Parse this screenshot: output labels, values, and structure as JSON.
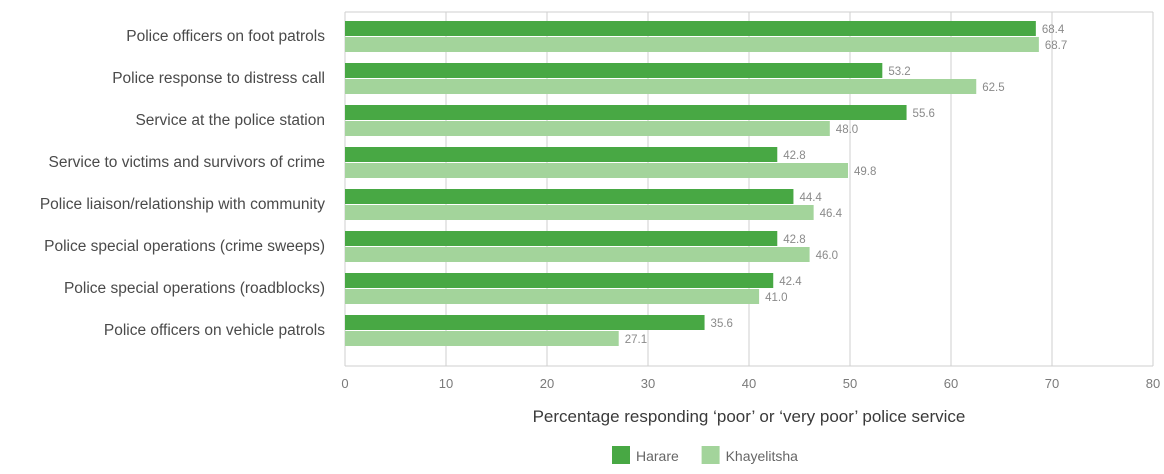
{
  "chart_data": {
    "type": "bar",
    "orientation": "horizontal",
    "title": "",
    "xlabel": "Percentage responding ‘poor’ or ‘very poor’ police service",
    "ylabel": "",
    "xlim": [
      0,
      80
    ],
    "xticks": [
      "0",
      "10",
      "20",
      "30",
      "40",
      "50",
      "60",
      "70",
      "80"
    ],
    "grid": "vertical",
    "legend_position": "bottom-center",
    "categories": [
      "Police officers on foot patrols",
      "Police response to distress call",
      "Service at the police station",
      "Service to victims and survivors of crime",
      "Police liaison/relationship with community",
      "Police special operations (crime sweeps)",
      "Police special operations (roadblocks)",
      "Police officers on vehicle patrols"
    ],
    "series": [
      {
        "name": "Harare",
        "color": "#48a844",
        "values": [
          68.4,
          53.2,
          55.6,
          42.8,
          44.4,
          42.8,
          42.4,
          35.6
        ],
        "labels": [
          "68.4",
          "53.2",
          "55.6",
          "42.8",
          "44.4",
          "42.8",
          "42.4",
          "35.6"
        ]
      },
      {
        "name": "Khayelitsha",
        "color": "#a3d49b",
        "values": [
          68.7,
          62.5,
          48.0,
          49.8,
          46.4,
          46.0,
          41.0,
          27.1
        ],
        "labels": [
          "68.7",
          "62.5",
          "48.0",
          "49.8",
          "46.4",
          "46.0",
          "41.0",
          "27.1"
        ]
      }
    ]
  }
}
